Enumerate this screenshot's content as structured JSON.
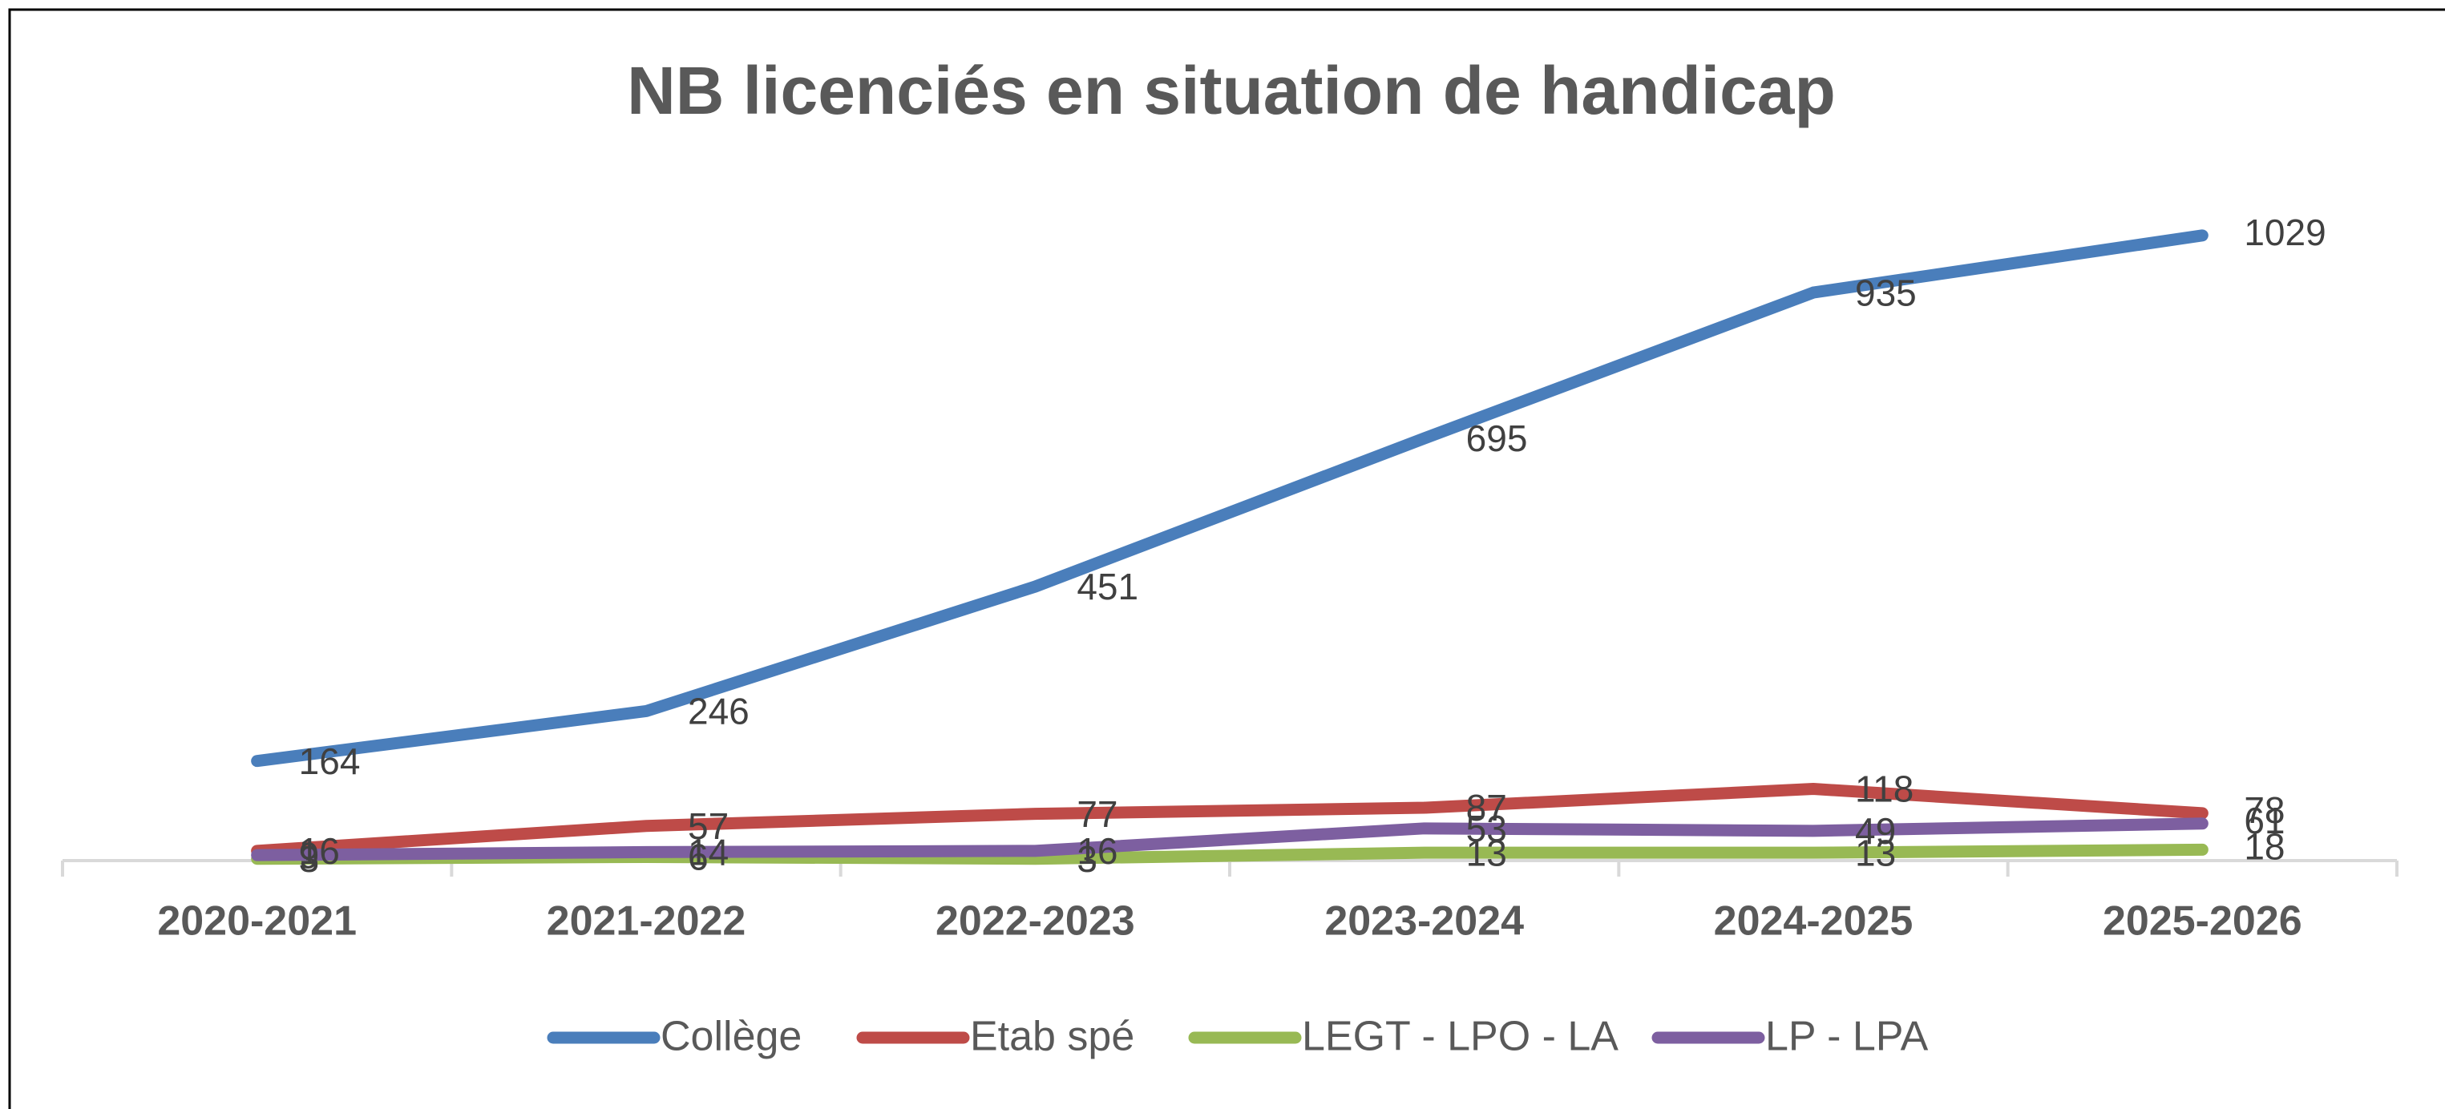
{
  "chart_data": {
    "type": "line",
    "title": "NB licenciés en situation de handicap",
    "categories": [
      "2020-2021",
      "2021-2022",
      "2022-2023",
      "2023-2024",
      "2024-2025",
      "2025-2026"
    ],
    "series": [
      {
        "name": "Collège",
        "color": "#4a7ebb",
        "values": [
          164,
          246,
          451,
          695,
          935,
          1029
        ]
      },
      {
        "name": "Etab spé",
        "color": "#be4b48",
        "values": [
          16,
          57,
          77,
          87,
          118,
          78
        ]
      },
      {
        "name": "LEGT - LPO - LA",
        "color": "#98b954",
        "values": [
          3,
          6,
          3,
          13,
          13,
          18
        ]
      },
      {
        "name": "LP - LPA",
        "color": "#7d5fa0",
        "values": [
          9,
          14,
          16,
          53,
          49,
          61
        ]
      }
    ],
    "ylim": [
      0,
      1100
    ]
  }
}
